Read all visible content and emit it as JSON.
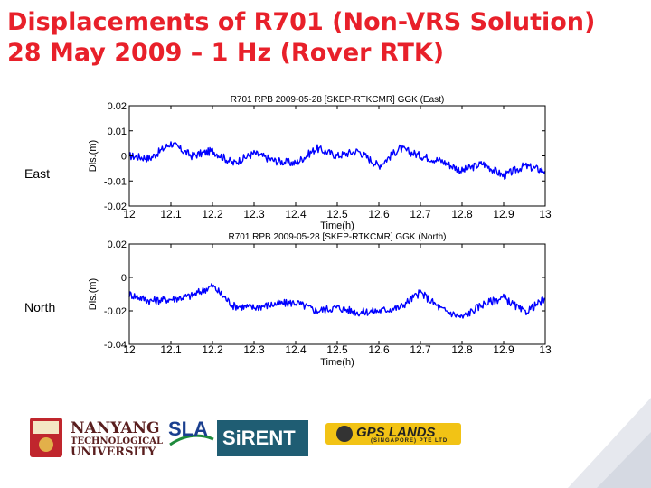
{
  "title": {
    "line1": "Displacements of R701 (Non-VRS Solution)",
    "line2": "28 May 2009 – 1 Hz (Rover RTK)"
  },
  "side_labels": {
    "east": "East",
    "north": "North"
  },
  "logos": {
    "ntu": {
      "line1": "NANYANG",
      "line2": "TECHNOLOGICAL",
      "line3": "UNIVERSITY"
    },
    "sla": {
      "main": "SLA"
    },
    "sirent": {
      "main": "SiRENT"
    },
    "gps_lands": {
      "main": "GPS LANDS",
      "sub": "(SINGAPORE) PTE LTD"
    }
  },
  "colors": {
    "title": "#e8202a",
    "series": "#0000ff",
    "sirent_bg": "#1f5d73",
    "gps_bg": "#f2c315"
  },
  "chart_data": [
    {
      "type": "line",
      "title": "R701 RPB 2009-05-28 [SKEP-RTKCMR] GGK (East)",
      "xlabel": "Time(h)",
      "ylabel": "Dis.(m)",
      "xlim": [
        12,
        13
      ],
      "ylim": [
        -0.02,
        0.02
      ],
      "xticks": [
        12,
        12.1,
        12.2,
        12.3,
        12.4,
        12.5,
        12.6,
        12.7,
        12.8,
        12.9,
        13
      ],
      "yticks": [
        -0.02,
        -0.01,
        0,
        0.01,
        0.02
      ],
      "xtick_labels": [
        "12",
        "12.1",
        "12.2",
        "12.3",
        "12.4",
        "12.5",
        "12.6",
        "12.7",
        "12.8",
        "12.9",
        "13"
      ],
      "ytick_labels": [
        "-0.02",
        "-0.01",
        "0",
        "0.01",
        "0.02"
      ],
      "grid": false,
      "series": [
        {
          "color": "#0000ff",
          "x": [
            12.0,
            12.05,
            12.1,
            12.15,
            12.2,
            12.25,
            12.3,
            12.35,
            12.4,
            12.45,
            12.5,
            12.55,
            12.6,
            12.65,
            12.7,
            12.75,
            12.8,
            12.85,
            12.9,
            12.95,
            13.0
          ],
          "values": [
            0.0,
            -0.001,
            0.005,
            0.0,
            0.002,
            -0.003,
            0.001,
            -0.002,
            -0.003,
            0.003,
            0.0,
            0.002,
            -0.004,
            0.003,
            0.0,
            -0.002,
            -0.006,
            -0.003,
            -0.008,
            -0.004,
            -0.006
          ]
        }
      ]
    },
    {
      "type": "line",
      "title": "R701 RPB 2009-05-28 [SKEP-RTKCMR] GGK (North)",
      "xlabel": "Time(h)",
      "ylabel": "Dis.(m)",
      "xlim": [
        12,
        13
      ],
      "ylim": [
        -0.04,
        0.02
      ],
      "xticks": [
        12,
        12.1,
        12.2,
        12.3,
        12.4,
        12.5,
        12.6,
        12.7,
        12.8,
        12.9,
        13
      ],
      "yticks": [
        -0.04,
        -0.02,
        0,
        0.02
      ],
      "xtick_labels": [
        "12",
        "12.1",
        "12.2",
        "12.3",
        "12.4",
        "12.5",
        "12.6",
        "12.7",
        "12.8",
        "12.9",
        "13"
      ],
      "ytick_labels": [
        "-0.04",
        "-0.02",
        "0",
        "0.02"
      ],
      "grid": false,
      "series": [
        {
          "color": "#0000ff",
          "x": [
            12.0,
            12.05,
            12.1,
            12.15,
            12.2,
            12.25,
            12.3,
            12.35,
            12.4,
            12.45,
            12.5,
            12.55,
            12.6,
            12.65,
            12.7,
            12.75,
            12.8,
            12.85,
            12.9,
            12.95,
            13.0
          ],
          "values": [
            -0.01,
            -0.014,
            -0.013,
            -0.011,
            -0.005,
            -0.017,
            -0.018,
            -0.016,
            -0.015,
            -0.02,
            -0.018,
            -0.021,
            -0.02,
            -0.018,
            -0.009,
            -0.019,
            -0.024,
            -0.016,
            -0.012,
            -0.021,
            -0.013
          ]
        }
      ]
    }
  ]
}
